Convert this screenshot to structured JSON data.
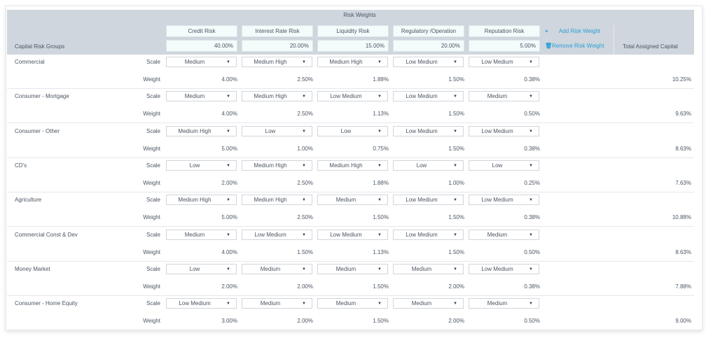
{
  "header": {
    "title": "Risk Weights",
    "group_column": "Capital Risk Groups",
    "total_column": "Total Assigned Capital",
    "add_label": "Add Risk Weight",
    "remove_label": "Remove Risk Weight",
    "add_icon": "plus-icon",
    "remove_icon": "trash-icon"
  },
  "risks": [
    {
      "label": "Credit Risk",
      "weight": "40.00%"
    },
    {
      "label": "Interest Rate Risk",
      "weight": "20.00%"
    },
    {
      "label": "Liquidity Risk",
      "weight": "15.00%"
    },
    {
      "label": "Regulatory /Operation",
      "weight": "20.00%"
    },
    {
      "label": "Reputation Risk",
      "weight": "5.00%"
    }
  ],
  "row_labels": {
    "scale": "Scale",
    "weight": "Weight"
  },
  "groups": [
    {
      "name": "Commercial",
      "scales": [
        "Medium",
        "Medium High",
        "Medium High",
        "Low Medium",
        "Low Medium"
      ],
      "weights": [
        "4.00%",
        "2.50%",
        "1.88%",
        "1.50%",
        "0.38%"
      ],
      "total": "10.25%"
    },
    {
      "name": "Consumer - Mortgage",
      "scales": [
        "Medium",
        "Medium High",
        "Low Medium",
        "Low Medium",
        "Medium"
      ],
      "weights": [
        "4.00%",
        "2.50%",
        "1.13%",
        "1.50%",
        "0.50%"
      ],
      "total": "9.63%"
    },
    {
      "name": "Consumer - Other",
      "scales": [
        "Medium High",
        "Low",
        "Low",
        "Low Medium",
        "Low Medium"
      ],
      "weights": [
        "5.00%",
        "1.00%",
        "0.75%",
        "1.50%",
        "0.38%"
      ],
      "total": "8.63%"
    },
    {
      "name": "CD's",
      "scales": [
        "Low",
        "Medium High",
        "Medium High",
        "Low",
        "Low"
      ],
      "weights": [
        "2.00%",
        "2.50%",
        "1.88%",
        "1.00%",
        "0.25%"
      ],
      "total": "7.63%"
    },
    {
      "name": "Agriculture",
      "scales": [
        "Medium High",
        "Medium High",
        "Medium",
        "Low Medium",
        "Low Medium"
      ],
      "weights": [
        "5.00%",
        "2.50%",
        "1.50%",
        "1.50%",
        "0.38%"
      ],
      "total": "10.88%"
    },
    {
      "name": "Commercial Const & Dev",
      "scales": [
        "Medium",
        "Low Medium",
        "Low Medium",
        "Low Medium",
        "Medium"
      ],
      "weights": [
        "4.00%",
        "1.50%",
        "1.13%",
        "1.50%",
        "0.50%"
      ],
      "total": "8.63%"
    },
    {
      "name": "Money Market",
      "scales": [
        "Low",
        "Medium",
        "Medium",
        "Medium",
        "Low Medium"
      ],
      "weights": [
        "2.00%",
        "2.00%",
        "1.50%",
        "2.00%",
        "0.38%"
      ],
      "total": "7.88%"
    },
    {
      "name": "Consumer - Home Equity",
      "scales": [
        "Low Medium",
        "Medium",
        "Medium",
        "Medium",
        "Medium"
      ],
      "weights": [
        "3.00%",
        "2.00%",
        "1.50%",
        "2.00%",
        "0.50%"
      ],
      "total": "9.00%"
    }
  ]
}
